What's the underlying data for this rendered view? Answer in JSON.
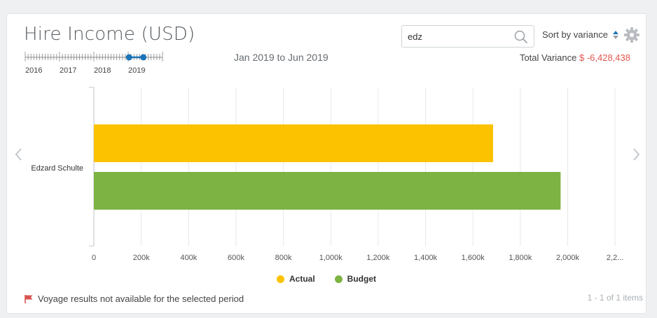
{
  "header": {
    "title": "Hire Income (USD)",
    "period": "Jan 2019 to Jun 2019",
    "timeline_years": [
      "2016",
      "2017",
      "2018",
      "2019"
    ],
    "timeline_range": {
      "from": "Jan 2019",
      "to": "Jun 2019"
    }
  },
  "search": {
    "value": "edz",
    "placeholder": ""
  },
  "sort": {
    "label": "Sort by variance"
  },
  "variance": {
    "label": "Total Variance",
    "value": "$ -6,428,438"
  },
  "footer": {
    "note": "Voyage results not available for the selected period",
    "pager": "1 - 1 of 1 items"
  },
  "colors": {
    "actual": "#fcc200",
    "budget": "#7cb342",
    "negative": "#e0564e",
    "timeline_accent": "#1a73b8",
    "flag": "#d9534f"
  },
  "icons": [
    "search-icon",
    "sort-caret-icon",
    "gear-icon",
    "chevron-left-icon",
    "chevron-right-icon",
    "flag-icon"
  ],
  "chart_data": {
    "type": "bar",
    "orientation": "horizontal",
    "categories": [
      "Edzard Schulte"
    ],
    "series": [
      {
        "name": "Actual",
        "values": [
          1685000
        ]
      },
      {
        "name": "Budget",
        "values": [
          1970000
        ]
      }
    ],
    "xticks": [
      "0",
      "200k",
      "400k",
      "600k",
      "800k",
      "1,000k",
      "1,200k",
      "1,400k",
      "1,600k",
      "1,800k",
      "2,000k",
      "2,2..."
    ],
    "xlim": [
      0,
      2200000
    ],
    "grid": true,
    "legend": "bottom-center"
  }
}
